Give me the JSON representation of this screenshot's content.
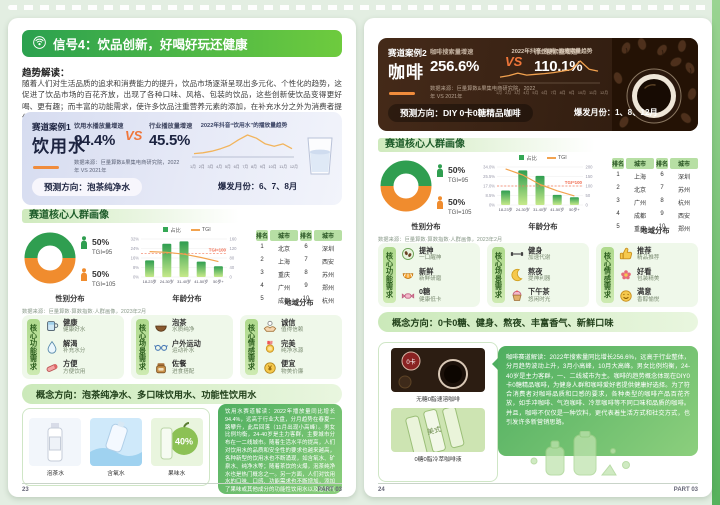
{
  "left_page": {
    "header_title": "信号4：饮品创新，好喝好玩还健康",
    "trend_label": "趋势解读：",
    "trend_text": "随着人们对生活品质的追求和消费能力的提升，饮品市场逐渐呈现出多元化、个性化的趋势，这促进了饮品市场的百花齐放，出现了各种口味、风格、包装的饮品，这些创新使饮品变得更好喝、更有趣；而丰富的功能需求，使许多饮品注重营养元素的添加，在补充水分之外为消费者提供了更多的营养摄入。",
    "case": {
      "label": "赛道案例1",
      "name": "饮用水",
      "m1_label": "饮用水播放量增速",
      "m1_value": "94.4%",
      "vs": "VS",
      "m2_label": "行业播放量增速",
      "m2_value": "45.5%",
      "source": "数据来源：巨量算数&果集电商研究院，2022年 VS 2021年",
      "chart_title": "2022年抖音“饮用水”的播放量趋势",
      "prediction": "预测方向：泡茶纯净水",
      "burst": "爆发月份：6、7、8月"
    },
    "portrait_title": "赛道核心人群画像",
    "gender": {
      "male_pct": "50%",
      "male_tgi": "TGI=95",
      "female_pct": "50%",
      "female_tgi": "TGI=105",
      "caption": "性别分布",
      "male_color": "#2f9e50",
      "female_color": "#f08c2e"
    },
    "age_legend": {
      "share": "占比",
      "tgi": "TGI"
    },
    "age_caption": "年龄分布",
    "region": {
      "caption": "地域分布",
      "headers": [
        "排名",
        "城市",
        "排名",
        "城市"
      ],
      "rows": [
        [
          "1",
          "北京",
          "6",
          "深圳"
        ],
        [
          "2",
          "上海",
          "7",
          "西安"
        ],
        [
          "3",
          "重庆",
          "8",
          "苏州"
        ],
        [
          "4",
          "广州",
          "9",
          "郑州"
        ],
        [
          "5",
          "成都",
          "10",
          "杭州"
        ]
      ]
    },
    "source_note": "数据来源：巨量算数·算数指数·人群画像，2023年2月",
    "needs": [
      {
        "tab": "核心功能需求",
        "items": [
          {
            "icon": "cup-icon",
            "title": "健康",
            "sub": "健康好水"
          },
          {
            "icon": "drop-icon",
            "title": "解渴",
            "sub": "补充水分"
          },
          {
            "icon": "bottle-icon",
            "title": "方便",
            "sub": "方便饮用"
          }
        ]
      },
      {
        "tab": "核心场景需求",
        "items": [
          {
            "icon": "tea-bowl-icon",
            "title": "泡茶",
            "sub": "水质纯净"
          },
          {
            "icon": "glasses-icon",
            "title": "户外运动",
            "sub": "运动补水"
          },
          {
            "icon": "jar-icon",
            "title": "佐餐",
            "sub": "进食搭配"
          }
        ]
      },
      {
        "tab": "核心情感需求",
        "items": [
          {
            "icon": "trust-icon",
            "title": "诚信",
            "sub": "值得信赖"
          },
          {
            "icon": "medal-icon",
            "title": "完美",
            "sub": "纯净水源"
          },
          {
            "icon": "coin-icon",
            "title": "便宜",
            "sub": "物美价廉"
          }
        ]
      }
    ],
    "concept": "概念方向：泡茶纯净水、多口味饮用水、功能性饮用水",
    "products": [
      {
        "icon": "tea-water-bottle",
        "label": "泡茶水"
      },
      {
        "icon": "oxygen-water",
        "label": "含氧水"
      },
      {
        "icon": "fruit-water",
        "label": "果味水"
      }
    ],
    "interpretation": "饮用水赛道解读：2022年播放量同比增长94.4%，远高于行业大盘，分月趋势在春夏一路攀升，此后回落（11月出现小高峰）。男女比例均衡，24-40岁是主力客群，主要城市分布在一二线城市。随着生活水平的提高，人们对饮用水的品质和安全性的要求也越来越高，各种新型的饮用水也不断涌现，如含氧水、矿泉水、纯净水等；随着茶饮的火爆，泡茶纯净水也是热门概念之一。另一方面，人们对饮用水的口味、口感、功能需求也不断增加，添加了果味或其他成分的功能性饮用水以及各类气泡水开始在市场上出现。",
    "footer_page": "23",
    "footer_part": "PART 03"
  },
  "right_page": {
    "case": {
      "label": "赛道案例2",
      "name": "咖啡",
      "m1_label": "咖啡搜索量增速",
      "m1_value": "256.6%",
      "vs": "VS",
      "m2_label": "行业搜索量增速",
      "m2_value": "110.1%",
      "source": "数据来源：巨量算数&果集电商研究院，2022年 VS 2021年",
      "chart_title": "2022年抖音“咖啡”的搜索量趋势",
      "prediction": "预测方向：DIY 0卡0糖精品咖啡",
      "burst": "爆发月份：1、8、12月"
    },
    "portrait_title": "赛道核心人群画像",
    "gender": {
      "male_pct": "50%",
      "male_tgi": "TGI=95",
      "female_pct": "50%",
      "female_tgi": "TGI=105",
      "caption": "性别分布",
      "male_color": "#2f9e50",
      "female_color": "#f08c2e"
    },
    "age_legend": {
      "share": "占比",
      "tgi": "TGI"
    },
    "age_caption": "年龄分布",
    "region": {
      "caption": "地域分布",
      "headers": [
        "排名",
        "城市",
        "排名",
        "城市"
      ],
      "rows": [
        [
          "1",
          "上海",
          "6",
          "深圳"
        ],
        [
          "2",
          "北京",
          "7",
          "苏州"
        ],
        [
          "3",
          "广州",
          "8",
          "杭州"
        ],
        [
          "4",
          "成都",
          "9",
          "西安"
        ],
        [
          "5",
          "重庆",
          "10",
          "郑州"
        ]
      ]
    },
    "source_note": "数据来源：巨量算数·算数指数·人群画像，2023年2月",
    "needs": [
      {
        "tab": "核心功能需求",
        "items": [
          {
            "icon": "beans-icon",
            "title": "提神",
            "sub": "一口醒神"
          },
          {
            "icon": "fresh-icon",
            "title": "新鲜",
            "sub": "新鲜研磨"
          },
          {
            "icon": "sugar-free-icon",
            "title": "0糖",
            "sub": "健康低卡"
          }
        ]
      },
      {
        "tab": "核心场景需求",
        "items": [
          {
            "icon": "fitness-icon",
            "title": "健身",
            "sub": "加速代谢"
          },
          {
            "icon": "night-icon",
            "title": "熬夜",
            "sub": "提神利器"
          },
          {
            "icon": "afternoon-tea-icon",
            "title": "下午茶",
            "sub": "悠闲时光"
          }
        ]
      },
      {
        "tab": "核心情感需求",
        "items": [
          {
            "icon": "thumbs-up-icon",
            "title": "推荐",
            "sub": "精品推荐"
          },
          {
            "icon": "pretty-icon",
            "title": "好看",
            "sub": "包装精美"
          },
          {
            "icon": "satisfied-icon",
            "title": "满意",
            "sub": "香醇愉悦"
          }
        ]
      }
    ],
    "concept": "概念方向：0卡0糖、健身、熬夜、丰富香气、新鲜口味",
    "products": [
      {
        "icon": "instant-coffee",
        "label": "无糖0脂速溶咖啡"
      },
      {
        "icon": "coldbrew-sticks",
        "label": "0糖0脂冷萃咖啡液"
      }
    ],
    "interpretation": "咖啡赛道解读：2022年搜索量同比增长256.6%，远高于行业整体，分月趋势波动上升，3月小高峰，10月大高峰。男女比例均衡，24-40岁是主力客群，一、二线城市为主。咖啡的趋势概念体现在DIY0卡0糖精品咖啡，为健身人群和咖啡爱好者提供健康好选择。为了符合消费者对咖啡品质和口感的要求，各种类型的咖啡产品百花齐放，如手冲咖啡、气泡咖啡、冷萃咖啡等不同口味和品质的咖啡。并且，咖啡不仅仅是一种饮料，更代表着生活方式和社交方式，也引发许多新营销思路。",
    "footer_page": "24",
    "footer_part": "PART 03"
  },
  "chart_data": [
    {
      "name": "water_play_trend",
      "type": "line",
      "title": "2022年抖音“饮用水”的播放量趋势",
      "x": [
        "1月",
        "2月",
        "3月",
        "4月",
        "5月",
        "6月",
        "7月",
        "8月",
        "9月",
        "10月",
        "11月",
        "12月"
      ],
      "values": [
        6,
        8,
        12,
        18,
        26,
        40,
        52,
        44,
        30,
        24,
        30,
        18
      ],
      "line_color": "#f2b45c",
      "axis_color": "#8a93ad",
      "ylabel": "",
      "axis_labeled": false
    },
    {
      "name": "coffee_search_trend",
      "type": "line",
      "title": "2022年抖音“咖啡”的搜索量趋势",
      "x": [
        "1月",
        "2月",
        "3月",
        "4月",
        "5月",
        "6月",
        "7月",
        "8月",
        "9月",
        "10月",
        "11月",
        "12月"
      ],
      "values": [
        20,
        26,
        36,
        28,
        31,
        34,
        38,
        44,
        50,
        85,
        52,
        44
      ],
      "line_color": "#f2a24f",
      "axis_color": "#8a7663",
      "ylabel": "",
      "axis_labeled": false
    },
    {
      "name": "water_age",
      "type": "bar+line",
      "title": "年龄分布",
      "categories": [
        "18-23岁",
        "24-30岁",
        "31-40岁",
        "41-50岁",
        "50岁+"
      ],
      "share": [
        14,
        28,
        30,
        13,
        9
      ],
      "tgi": [
        107,
        104,
        96,
        82,
        65
      ],
      "left_ticks": [
        "0%",
        "8%",
        "16%",
        "24%",
        "32%"
      ],
      "left_max": 32,
      "right_ticks": [
        "0",
        "40",
        "80",
        "120",
        "160"
      ],
      "right_max": 160,
      "tgi_ref": 100,
      "ref_label": "TGI=100",
      "legend": [
        "占比",
        "TGI"
      ],
      "legend_position": "top"
    },
    {
      "name": "coffee_age",
      "type": "bar+line",
      "title": "年龄分布",
      "categories": [
        "18-23岁",
        "24-30岁",
        "31-40岁",
        "41-50岁",
        "50岁+"
      ],
      "share": [
        13,
        31,
        26,
        9,
        7
      ],
      "tgi": [
        190,
        158,
        108,
        75,
        48
      ],
      "left_ticks": [
        "0%",
        "8.5%",
        "17.0%",
        "25.5%",
        "34.0%"
      ],
      "left_max": 34,
      "right_ticks": [
        "0",
        "50",
        "100",
        "150",
        "200"
      ],
      "right_max": 200,
      "tgi_ref": 100,
      "ref_label": "TGI=100",
      "legend": [
        "占比",
        "TGI"
      ],
      "legend_position": "top"
    },
    {
      "name": "water_gender",
      "type": "pie",
      "title": "性别分布",
      "labels": [
        "男性",
        "女性"
      ],
      "values": [
        50,
        50
      ],
      "tgi": [
        95,
        105
      ],
      "colors": [
        "#2f9e50",
        "#f08c2e"
      ]
    },
    {
      "name": "coffee_gender",
      "type": "pie",
      "title": "性别分布",
      "labels": [
        "男性",
        "女性"
      ],
      "values": [
        50,
        50
      ],
      "tgi": [
        95,
        105
      ],
      "colors": [
        "#2f9e50",
        "#f08c2e"
      ]
    }
  ]
}
